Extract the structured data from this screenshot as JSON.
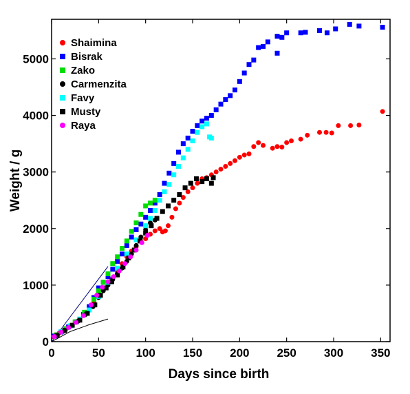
{
  "chart_data": {
    "type": "scatter",
    "xlabel": "Days since birth",
    "ylabel": "Weight / g",
    "xlim": [
      0,
      360
    ],
    "ylim": [
      0,
      5700
    ],
    "xticks": [
      0,
      50,
      100,
      150,
      200,
      250,
      300,
      350
    ],
    "yticks": [
      0,
      1000,
      2000,
      3000,
      4000,
      5000
    ],
    "grid": false,
    "legend": "top-left",
    "series": [
      {
        "name": "Shaimina",
        "color": "#ff0000",
        "marker": "circle",
        "points": [
          [
            2,
            90
          ],
          [
            8,
            150
          ],
          [
            15,
            230
          ],
          [
            22,
            290
          ],
          [
            30,
            380
          ],
          [
            38,
            520
          ],
          [
            45,
            700
          ],
          [
            50,
            850
          ],
          [
            55,
            950
          ],
          [
            60,
            1020
          ],
          [
            65,
            1120
          ],
          [
            70,
            1250
          ],
          [
            75,
            1380
          ],
          [
            80,
            1500
          ],
          [
            85,
            1600
          ],
          [
            90,
            1680
          ],
          [
            95,
            1780
          ],
          [
            100,
            1820
          ],
          [
            105,
            1900
          ],
          [
            110,
            1960
          ],
          [
            115,
            2000
          ],
          [
            118,
            1940
          ],
          [
            121,
            1960
          ],
          [
            124,
            2050
          ],
          [
            128,
            2200
          ],
          [
            132,
            2350
          ],
          [
            136,
            2450
          ],
          [
            140,
            2550
          ],
          [
            145,
            2650
          ],
          [
            150,
            2720
          ],
          [
            155,
            2800
          ],
          [
            160,
            2880
          ],
          [
            165,
            2900
          ],
          [
            170,
            2950
          ],
          [
            175,
            3000
          ],
          [
            180,
            3050
          ],
          [
            185,
            3100
          ],
          [
            190,
            3150
          ],
          [
            195,
            3200
          ],
          [
            200,
            3260
          ],
          [
            205,
            3300
          ],
          [
            210,
            3320
          ],
          [
            215,
            3450
          ],
          [
            220,
            3520
          ],
          [
            225,
            3470
          ],
          [
            235,
            3420
          ],
          [
            240,
            3450
          ],
          [
            245,
            3440
          ],
          [
            250,
            3520
          ],
          [
            255,
            3550
          ],
          [
            265,
            3580
          ],
          [
            272,
            3650
          ],
          [
            285,
            3700
          ],
          [
            292,
            3700
          ],
          [
            298,
            3690
          ],
          [
            305,
            3820
          ],
          [
            318,
            3820
          ],
          [
            327,
            3830
          ],
          [
            352,
            4070
          ]
        ]
      },
      {
        "name": "Bisrak",
        "color": "#0000ff",
        "marker": "square",
        "points": [
          [
            3,
            100
          ],
          [
            10,
            170
          ],
          [
            18,
            260
          ],
          [
            26,
            350
          ],
          [
            34,
            480
          ],
          [
            40,
            620
          ],
          [
            45,
            780
          ],
          [
            50,
            950
          ],
          [
            55,
            1050
          ],
          [
            60,
            1150
          ],
          [
            65,
            1280
          ],
          [
            70,
            1420
          ],
          [
            75,
            1550
          ],
          [
            80,
            1700
          ],
          [
            85,
            1850
          ],
          [
            90,
            1980
          ],
          [
            95,
            2080
          ],
          [
            100,
            2200
          ],
          [
            105,
            2320
          ],
          [
            110,
            2450
          ],
          [
            115,
            2600
          ],
          [
            120,
            2800
          ],
          [
            125,
            2980
          ],
          [
            130,
            3150
          ],
          [
            135,
            3350
          ],
          [
            140,
            3500
          ],
          [
            145,
            3600
          ],
          [
            150,
            3720
          ],
          [
            155,
            3820
          ],
          [
            160,
            3900
          ],
          [
            165,
            3950
          ],
          [
            170,
            4000
          ],
          [
            175,
            4100
          ],
          [
            180,
            4200
          ],
          [
            185,
            4280
          ],
          [
            190,
            4350
          ],
          [
            195,
            4450
          ],
          [
            200,
            4600
          ],
          [
            205,
            4750
          ],
          [
            210,
            4900
          ],
          [
            215,
            4980
          ],
          [
            220,
            5200
          ],
          [
            225,
            5220
          ],
          [
            230,
            5300
          ],
          [
            240,
            5100
          ],
          [
            240,
            5400
          ],
          [
            245,
            5380
          ],
          [
            250,
            5460
          ],
          [
            265,
            5460
          ],
          [
            270,
            5470
          ],
          [
            285,
            5500
          ],
          [
            293,
            5460
          ],
          [
            302,
            5530
          ],
          [
            317,
            5610
          ],
          [
            327,
            5580
          ],
          [
            352,
            5560
          ]
        ]
      },
      {
        "name": "Zako",
        "color": "#00dd00",
        "marker": "square",
        "points": [
          [
            5,
            120
          ],
          [
            15,
            230
          ],
          [
            25,
            350
          ],
          [
            35,
            520
          ],
          [
            45,
            750
          ],
          [
            50,
            900
          ],
          [
            55,
            1050
          ],
          [
            60,
            1200
          ],
          [
            65,
            1380
          ],
          [
            70,
            1500
          ],
          [
            75,
            1650
          ],
          [
            80,
            1780
          ],
          [
            85,
            1950
          ],
          [
            90,
            2100
          ],
          [
            95,
            2250
          ],
          [
            100,
            2400
          ],
          [
            105,
            2450
          ],
          [
            110,
            2500
          ]
        ]
      },
      {
        "name": "Carmenzita",
        "color": "#000000",
        "marker": "circle",
        "points": [
          [
            4,
            100
          ],
          [
            12,
            180
          ],
          [
            20,
            270
          ],
          [
            28,
            360
          ],
          [
            36,
            480
          ],
          [
            44,
            620
          ],
          [
            50,
            780
          ],
          [
            55,
            900
          ],
          [
            60,
            1000
          ],
          [
            65,
            1100
          ],
          [
            70,
            1200
          ],
          [
            75,
            1300
          ],
          [
            80,
            1420
          ],
          [
            85,
            1550
          ],
          [
            90,
            1700
          ],
          [
            95,
            1850
          ],
          [
            100,
            1980
          ],
          [
            105,
            2100
          ],
          [
            110,
            2150
          ]
        ]
      },
      {
        "name": "Favy",
        "color": "#00ffff",
        "marker": "square",
        "points": [
          [
            10,
            180
          ],
          [
            20,
            280
          ],
          [
            30,
            400
          ],
          [
            40,
            560
          ],
          [
            50,
            800
          ],
          [
            60,
            1050
          ],
          [
            70,
            1300
          ],
          [
            80,
            1550
          ],
          [
            90,
            1800
          ],
          [
            100,
            2050
          ],
          [
            105,
            2180
          ],
          [
            110,
            2320
          ],
          [
            115,
            2500
          ],
          [
            120,
            2650
          ],
          [
            125,
            2780
          ],
          [
            130,
            2950
          ],
          [
            135,
            3100
          ],
          [
            140,
            3250
          ],
          [
            145,
            3400
          ],
          [
            150,
            3550
          ],
          [
            155,
            3700
          ],
          [
            160,
            3800
          ],
          [
            165,
            3850
          ],
          [
            168,
            3620
          ],
          [
            170,
            3600
          ]
        ]
      },
      {
        "name": "Musty",
        "color": "#000000",
        "marker": "square",
        "points": [
          [
            6,
            110
          ],
          [
            14,
            200
          ],
          [
            22,
            290
          ],
          [
            30,
            380
          ],
          [
            38,
            500
          ],
          [
            46,
            650
          ],
          [
            52,
            820
          ],
          [
            58,
            950
          ],
          [
            64,
            1060
          ],
          [
            70,
            1180
          ],
          [
            76,
            1320
          ],
          [
            82,
            1480
          ],
          [
            88,
            1620
          ],
          [
            94,
            1780
          ],
          [
            100,
            1920
          ],
          [
            106,
            2050
          ],
          [
            112,
            2180
          ],
          [
            118,
            2300
          ],
          [
            124,
            2400
          ],
          [
            130,
            2500
          ],
          [
            136,
            2600
          ],
          [
            142,
            2720
          ],
          [
            148,
            2800
          ],
          [
            154,
            2880
          ],
          [
            160,
            2830
          ],
          [
            165,
            2880
          ],
          [
            170,
            2800
          ],
          [
            172,
            2900
          ]
        ]
      },
      {
        "name": "Raya",
        "color": "#ff00ff",
        "marker": "circle",
        "points": [
          [
            3,
            90
          ],
          [
            10,
            170
          ],
          [
            18,
            250
          ],
          [
            26,
            340
          ],
          [
            34,
            460
          ],
          [
            42,
            650
          ],
          [
            48,
            820
          ],
          [
            54,
            960
          ],
          [
            60,
            1060
          ],
          [
            66,
            1150
          ],
          [
            72,
            1250
          ],
          [
            78,
            1380
          ],
          [
            84,
            1500
          ],
          [
            90,
            1620
          ],
          [
            96,
            1750
          ],
          [
            102,
            1880
          ]
        ]
      }
    ],
    "reference_lines": [
      {
        "color": "#000080",
        "points": [
          [
            0,
            0
          ],
          [
            60,
            1330
          ]
        ]
      },
      {
        "color": "#000000",
        "points": [
          [
            0,
            0
          ],
          [
            20,
            180
          ],
          [
            40,
            300
          ],
          [
            60,
            400
          ]
        ]
      }
    ]
  }
}
